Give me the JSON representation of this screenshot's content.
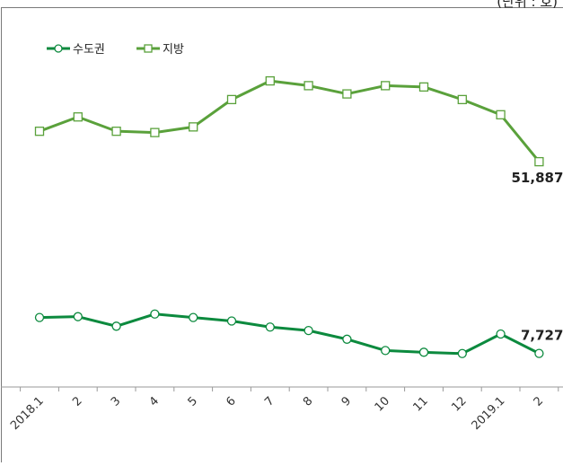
{
  "unit_note": "(단위 : 호)",
  "chart_data": {
    "type": "line",
    "categories": [
      "2018.1",
      "2",
      "3",
      "4",
      "5",
      "6",
      "7",
      "8",
      "9",
      "10",
      "11",
      "12",
      "2019.1",
      "2"
    ],
    "series": [
      {
        "name": "수도권",
        "color": "#0c8a3e",
        "marker": "circle",
        "values": [
          16000,
          16200,
          14000,
          16800,
          16000,
          15200,
          13800,
          13000,
          11000,
          8400,
          8000,
          7700,
          12200,
          7727
        ],
        "end_label": "7,727"
      },
      {
        "name": "지방",
        "color": "#5aa13b",
        "marker": "square",
        "values": [
          58900,
          62200,
          58900,
          58600,
          59900,
          66200,
          70500,
          69400,
          67500,
          69400,
          69100,
          66200,
          62700,
          51887
        ],
        "end_label": "51,887"
      }
    ],
    "title": "",
    "xlabel": "",
    "ylabel": "",
    "grid": false,
    "legend": "top-left",
    "ylim": [
      0,
      73000
    ]
  }
}
